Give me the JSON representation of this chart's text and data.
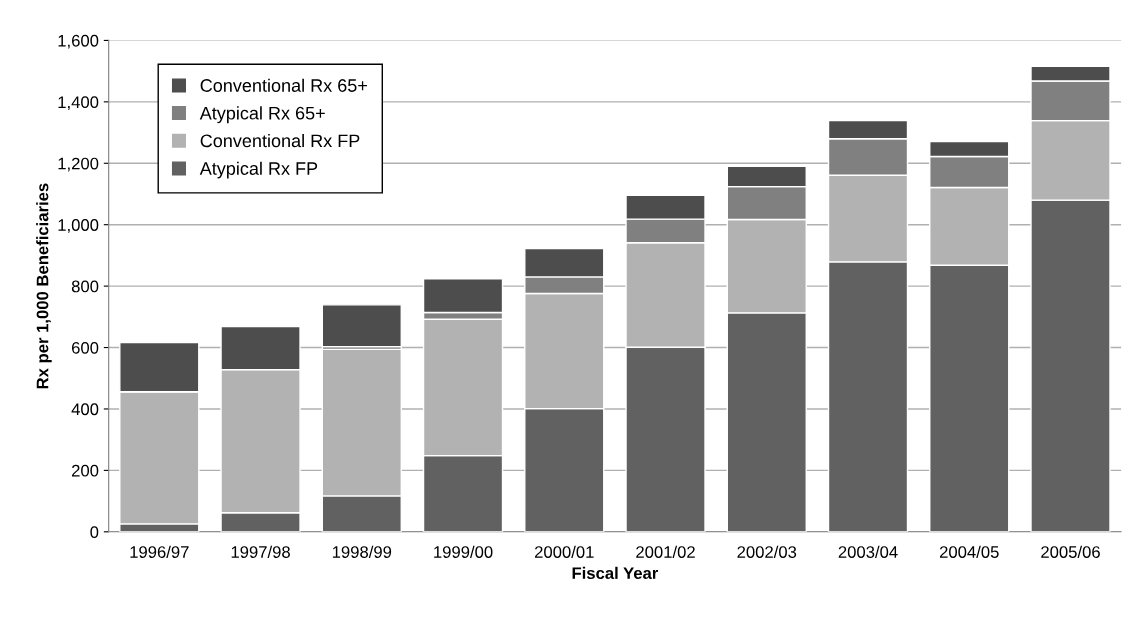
{
  "chart_data": {
    "type": "bar",
    "stacked": true,
    "xlabel": "Fiscal Year",
    "ylabel": "Rx per 1,000 Beneficiaries",
    "categories": [
      "1996/97",
      "1997/98",
      "1998/99",
      "1999/00",
      "2000/01",
      "2001/02",
      "2002/03",
      "2003/04",
      "2004/05",
      "2005/06"
    ],
    "series": [
      {
        "name": "Atypical Rx FP",
        "color": "#616161",
        "values": [
          26,
          62,
          117,
          248,
          401,
          601,
          713,
          879,
          868,
          1080
        ]
      },
      {
        "name": "Conventional Rx FP",
        "color": "#b2b2b2",
        "values": [
          430,
          466,
          477,
          444,
          375,
          340,
          304,
          282,
          253,
          259
        ]
      },
      {
        "name": "Atypical Rx 65+",
        "color": "#808080",
        "values": [
          0,
          null,
          9,
          22,
          54,
          77,
          107,
          119,
          101,
          129
        ]
      },
      {
        "name": "Conventional Rx 65+",
        "color": "#4d4d4d",
        "values": [
          160,
          140,
          136,
          110,
          92,
          78,
          66,
          59,
          49,
          48
        ]
      }
    ],
    "ylim": [
      0,
      1600
    ],
    "yticks": [
      {
        "value": 0,
        "label": "0"
      },
      {
        "value": 200,
        "label": "200"
      },
      {
        "value": 400,
        "label": "400"
      },
      {
        "value": 600,
        "label": "600"
      },
      {
        "value": 800,
        "label": "800"
      },
      {
        "value": 1000,
        "label": "1,000"
      },
      {
        "value": 1200,
        "label": "1,200"
      },
      {
        "value": 1400,
        "label": "1,400"
      },
      {
        "value": 1600,
        "label": "1,600"
      }
    ],
    "grid": "y",
    "legend": "top left"
  }
}
